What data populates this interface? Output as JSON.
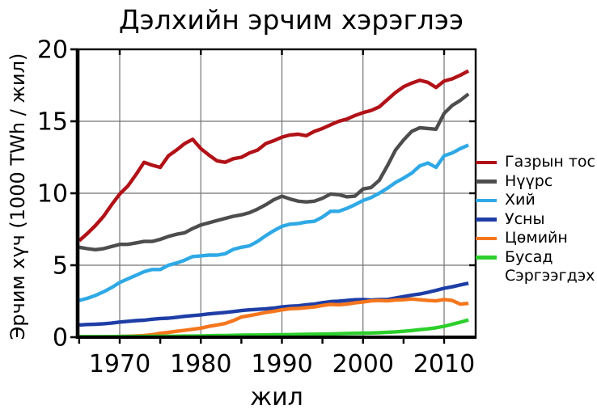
{
  "page": {
    "background": "#ffffff"
  },
  "chart_data": {
    "type": "line",
    "title": "Дэлхийн эрчим хэрэглээ",
    "xlabel": "жил",
    "ylabel": "Эрчим хүч (1000 TWh / жил)",
    "x_range_years": [
      1965,
      2013
    ],
    "ylim": [
      0,
      20
    ],
    "yticks": [
      0,
      5,
      10,
      15,
      20
    ],
    "xticks": [
      1970,
      1980,
      1990,
      2000,
      2010
    ],
    "minor_xtick_step_years": 5,
    "grid": true,
    "grid_color": "#737373",
    "axis_color": "#000000",
    "legend_position": "right-outside",
    "years": [
      1965,
      1966,
      1967,
      1968,
      1969,
      1970,
      1971,
      1972,
      1973,
      1974,
      1975,
      1976,
      1977,
      1978,
      1979,
      1980,
      1981,
      1982,
      1983,
      1984,
      1985,
      1986,
      1987,
      1988,
      1989,
      1990,
      1991,
      1992,
      1993,
      1994,
      1995,
      1996,
      1997,
      1998,
      1999,
      2000,
      2001,
      2002,
      2003,
      2004,
      2005,
      2006,
      2007,
      2008,
      2009,
      2010,
      2011,
      2012,
      2013
    ],
    "series": [
      {
        "key": "oil",
        "name": "Газрын тос",
        "color": "#b11217",
        "values": [
          6.7,
          7.2,
          7.75,
          8.4,
          9.2,
          9.95,
          10.5,
          11.3,
          12.15,
          11.95,
          11.8,
          12.6,
          13.0,
          13.45,
          13.75,
          13.1,
          12.65,
          12.25,
          12.15,
          12.4,
          12.5,
          12.8,
          13.0,
          13.45,
          13.65,
          13.9,
          14.05,
          14.1,
          14.0,
          14.3,
          14.5,
          14.75,
          15.0,
          15.15,
          15.4,
          15.6,
          15.75,
          16.0,
          16.5,
          17.0,
          17.4,
          17.65,
          17.85,
          17.7,
          17.35,
          17.8,
          17.95,
          18.2,
          18.5
        ]
      },
      {
        "key": "coal",
        "name": "Нүүрс",
        "color": "#4d4d4d",
        "values": [
          6.25,
          6.15,
          6.08,
          6.15,
          6.3,
          6.45,
          6.45,
          6.55,
          6.65,
          6.65,
          6.8,
          7.0,
          7.15,
          7.25,
          7.55,
          7.8,
          7.95,
          8.1,
          8.25,
          8.4,
          8.5,
          8.65,
          8.9,
          9.2,
          9.55,
          9.8,
          9.6,
          9.45,
          9.4,
          9.45,
          9.65,
          9.95,
          9.9,
          9.75,
          9.8,
          10.3,
          10.4,
          10.9,
          11.9,
          13.0,
          13.7,
          14.3,
          14.55,
          14.5,
          14.45,
          15.55,
          16.1,
          16.45,
          16.9
        ]
      },
      {
        "key": "gas",
        "name": "Хий",
        "color": "#2fa9e6",
        "values": [
          2.55,
          2.7,
          2.9,
          3.15,
          3.45,
          3.8,
          4.05,
          4.3,
          4.55,
          4.7,
          4.7,
          5.0,
          5.15,
          5.35,
          5.6,
          5.65,
          5.7,
          5.7,
          5.8,
          6.1,
          6.25,
          6.35,
          6.65,
          7.05,
          7.4,
          7.7,
          7.85,
          7.9,
          8.0,
          8.05,
          8.35,
          8.75,
          8.75,
          8.95,
          9.2,
          9.5,
          9.7,
          10.0,
          10.35,
          10.75,
          11.05,
          11.4,
          11.9,
          12.1,
          11.8,
          12.6,
          12.8,
          13.1,
          13.35
        ]
      },
      {
        "key": "hydro",
        "name": "Усны",
        "color": "#1e3ea6",
        "values": [
          0.85,
          0.88,
          0.9,
          0.93,
          0.98,
          1.05,
          1.1,
          1.15,
          1.18,
          1.25,
          1.3,
          1.32,
          1.38,
          1.45,
          1.5,
          1.55,
          1.62,
          1.67,
          1.72,
          1.78,
          1.85,
          1.9,
          1.93,
          1.97,
          2.02,
          2.1,
          2.15,
          2.18,
          2.25,
          2.3,
          2.4,
          2.47,
          2.5,
          2.55,
          2.6,
          2.62,
          2.58,
          2.62,
          2.62,
          2.72,
          2.82,
          2.92,
          3.0,
          3.12,
          3.25,
          3.4,
          3.5,
          3.63,
          3.75
        ]
      },
      {
        "key": "nuclear",
        "name": "Цөмийн",
        "color": "#f5761d",
        "values": [
          0.01,
          0.01,
          0.02,
          0.03,
          0.04,
          0.05,
          0.07,
          0.09,
          0.12,
          0.17,
          0.27,
          0.33,
          0.41,
          0.48,
          0.55,
          0.63,
          0.75,
          0.85,
          0.95,
          1.15,
          1.4,
          1.5,
          1.6,
          1.72,
          1.8,
          1.9,
          1.98,
          2.0,
          2.05,
          2.1,
          2.2,
          2.28,
          2.25,
          2.3,
          2.38,
          2.45,
          2.52,
          2.55,
          2.52,
          2.58,
          2.6,
          2.65,
          2.6,
          2.55,
          2.52,
          2.62,
          2.55,
          2.3,
          2.35
        ]
      },
      {
        "key": "renewables",
        "name": "Бусад Сэргээгдэх",
        "color": "#2ccf2c",
        "values": [
          0.04,
          0.04,
          0.04,
          0.04,
          0.04,
          0.05,
          0.05,
          0.05,
          0.05,
          0.06,
          0.06,
          0.07,
          0.07,
          0.08,
          0.08,
          0.09,
          0.1,
          0.11,
          0.12,
          0.13,
          0.14,
          0.15,
          0.15,
          0.16,
          0.17,
          0.17,
          0.18,
          0.19,
          0.2,
          0.21,
          0.22,
          0.23,
          0.24,
          0.26,
          0.27,
          0.28,
          0.29,
          0.31,
          0.34,
          0.37,
          0.41,
          0.46,
          0.52,
          0.58,
          0.65,
          0.76,
          0.9,
          1.04,
          1.2
        ]
      }
    ]
  }
}
